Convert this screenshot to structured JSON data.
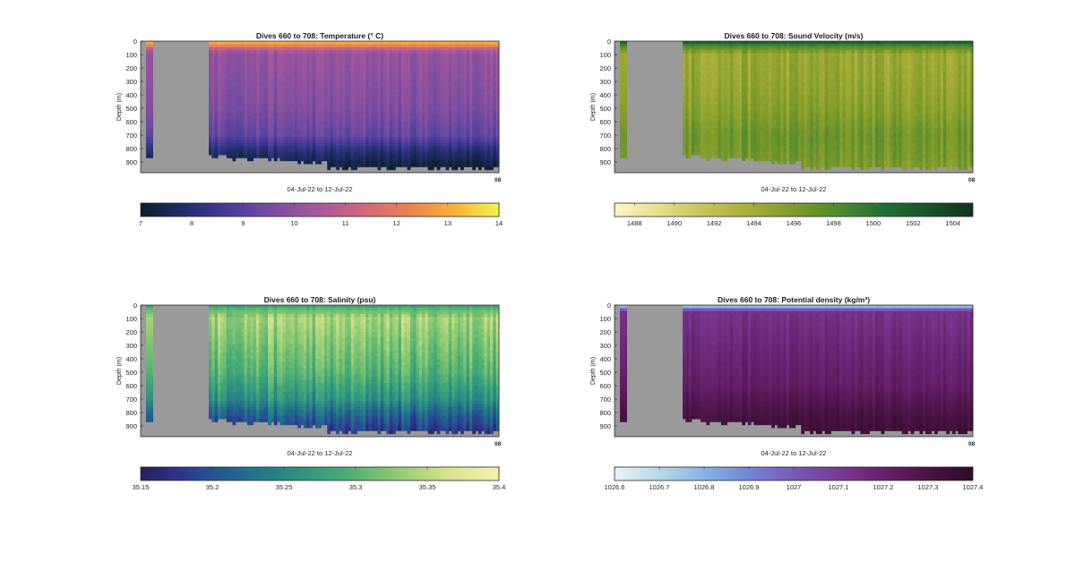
{
  "figure": {
    "date_range_label": "04-Jul-22 to 12-Jul-22",
    "ylabel": "Depth (m)",
    "y_ticks": [
      0,
      100,
      200,
      300,
      400,
      500,
      600,
      700,
      800,
      900
    ],
    "end_tick_label": "08"
  },
  "chart_data": [
    {
      "type": "heatmap",
      "title": "Dives 660 to 708: Temperature (° C)",
      "xlabel": "04-Jul-22 to 12-Jul-22",
      "ylabel": "Depth (m)",
      "ylim": [
        0,
        980
      ],
      "y_reversed": true,
      "colorbar": {
        "min": 7,
        "max": 14,
        "ticks": [
          7,
          8,
          9,
          10,
          11,
          12,
          13,
          14
        ],
        "tick_labels": [
          "7",
          "8",
          "9",
          "10",
          "11",
          "12",
          "13",
          "14"
        ],
        "colors": [
          "#0c1e2a",
          "#1f2e6b",
          "#4a3c9e",
          "#7d4ea0",
          "#a9589a",
          "#d2677a",
          "#ee8250",
          "#f9b13a",
          "#f3f54a"
        ]
      },
      "depth_profile": [
        {
          "depth": 0,
          "value": 13.3
        },
        {
          "depth": 30,
          "value": 12.5
        },
        {
          "depth": 60,
          "value": 10.8
        },
        {
          "depth": 100,
          "value": 10.1
        },
        {
          "depth": 300,
          "value": 9.9
        },
        {
          "depth": 500,
          "value": 9.7
        },
        {
          "depth": 700,
          "value": 9.2
        },
        {
          "depth": 800,
          "value": 8.2
        },
        {
          "depth": 900,
          "value": 7.4
        },
        {
          "depth": 980,
          "value": 7.1
        }
      ],
      "variability": 0.35
    },
    {
      "type": "heatmap",
      "title": "Dives 660 to 708: Sound Velocity (m/s)",
      "xlabel": "04-Jul-22 to 12-Jul-22",
      "ylabel": "Depth (m)",
      "ylim": [
        0,
        980
      ],
      "y_reversed": true,
      "colorbar": {
        "min": 1487,
        "max": 1505,
        "ticks": [
          1488,
          1490,
          1492,
          1494,
          1496,
          1498,
          1500,
          1502,
          1504
        ],
        "tick_labels": [
          "1488",
          "1490",
          "1492",
          "1494",
          "1496",
          "1498",
          "1500",
          "1502",
          "1504"
        ],
        "colors": [
          "#fbf6c7",
          "#e5df8e",
          "#c7c35a",
          "#a7ae38",
          "#7f9b2b",
          "#4f8a2e",
          "#1f7132",
          "#185428",
          "#11301c"
        ]
      },
      "depth_profile": [
        {
          "depth": 0,
          "value": 1502.5
        },
        {
          "depth": 40,
          "value": 1498.0
        },
        {
          "depth": 100,
          "value": 1494.5
        },
        {
          "depth": 300,
          "value": 1494.8
        },
        {
          "depth": 500,
          "value": 1495.5
        },
        {
          "depth": 700,
          "value": 1496.8
        },
        {
          "depth": 850,
          "value": 1496.5
        },
        {
          "depth": 980,
          "value": 1495.8
        }
      ],
      "variability": 1.3
    },
    {
      "type": "heatmap",
      "title": "Dives 660 to 708: Salinity (psu)",
      "xlabel": "04-Jul-22 to 12-Jul-22",
      "ylabel": "Depth (m)",
      "ylim": [
        0,
        980
      ],
      "y_reversed": true,
      "colorbar": {
        "min": 35.15,
        "max": 35.4,
        "ticks": [
          35.15,
          35.2,
          35.25,
          35.3,
          35.35,
          35.4
        ],
        "tick_labels": [
          "35.15",
          "35.2",
          "35.25",
          "35.3",
          "35.35",
          "35.4"
        ],
        "colors": [
          "#2a1c60",
          "#2b3e94",
          "#1f6d8c",
          "#2b8e84",
          "#48ad74",
          "#8fca72",
          "#d8e38c",
          "#f6f3b0"
        ]
      },
      "depth_profile": [
        {
          "depth": 0,
          "value": 35.27
        },
        {
          "depth": 20,
          "value": 35.3
        },
        {
          "depth": 100,
          "value": 35.34
        },
        {
          "depth": 300,
          "value": 35.32
        },
        {
          "depth": 500,
          "value": 35.3
        },
        {
          "depth": 700,
          "value": 35.26
        },
        {
          "depth": 800,
          "value": 35.22
        },
        {
          "depth": 900,
          "value": 35.19
        },
        {
          "depth": 980,
          "value": 35.17
        }
      ],
      "variability": 0.025
    },
    {
      "type": "heatmap",
      "title": "Dives 660 to 708: Potential density (kg/m³)",
      "xlabel": "04-Jul-22 to 12-Jul-22",
      "ylabel": "Depth (m)",
      "ylim": [
        0,
        980
      ],
      "y_reversed": true,
      "colorbar": {
        "min": 1026.6,
        "max": 1027.4,
        "ticks": [
          1026.6,
          1026.7,
          1026.8,
          1026.9,
          1027.0,
          1027.1,
          1027.2,
          1027.3,
          1027.4
        ],
        "tick_labels": [
          "1026.6",
          "1026.7",
          "1026.8",
          "1026.9",
          "1027",
          "1027.1",
          "1027.2",
          "1027.3",
          "1027.4"
        ],
        "colors": [
          "#e9f4f7",
          "#b7d8ec",
          "#86b4e2",
          "#7186d8",
          "#7a58b8",
          "#7a3a94",
          "#66216b",
          "#4a1243",
          "#2e0a26"
        ]
      },
      "depth_profile": [
        {
          "depth": 0,
          "value": 1026.65
        },
        {
          "depth": 20,
          "value": 1026.9
        },
        {
          "depth": 50,
          "value": 1027.13
        },
        {
          "depth": 300,
          "value": 1027.17
        },
        {
          "depth": 600,
          "value": 1027.22
        },
        {
          "depth": 800,
          "value": 1027.3
        },
        {
          "depth": 980,
          "value": 1027.35
        }
      ],
      "variability": 0.03
    }
  ]
}
